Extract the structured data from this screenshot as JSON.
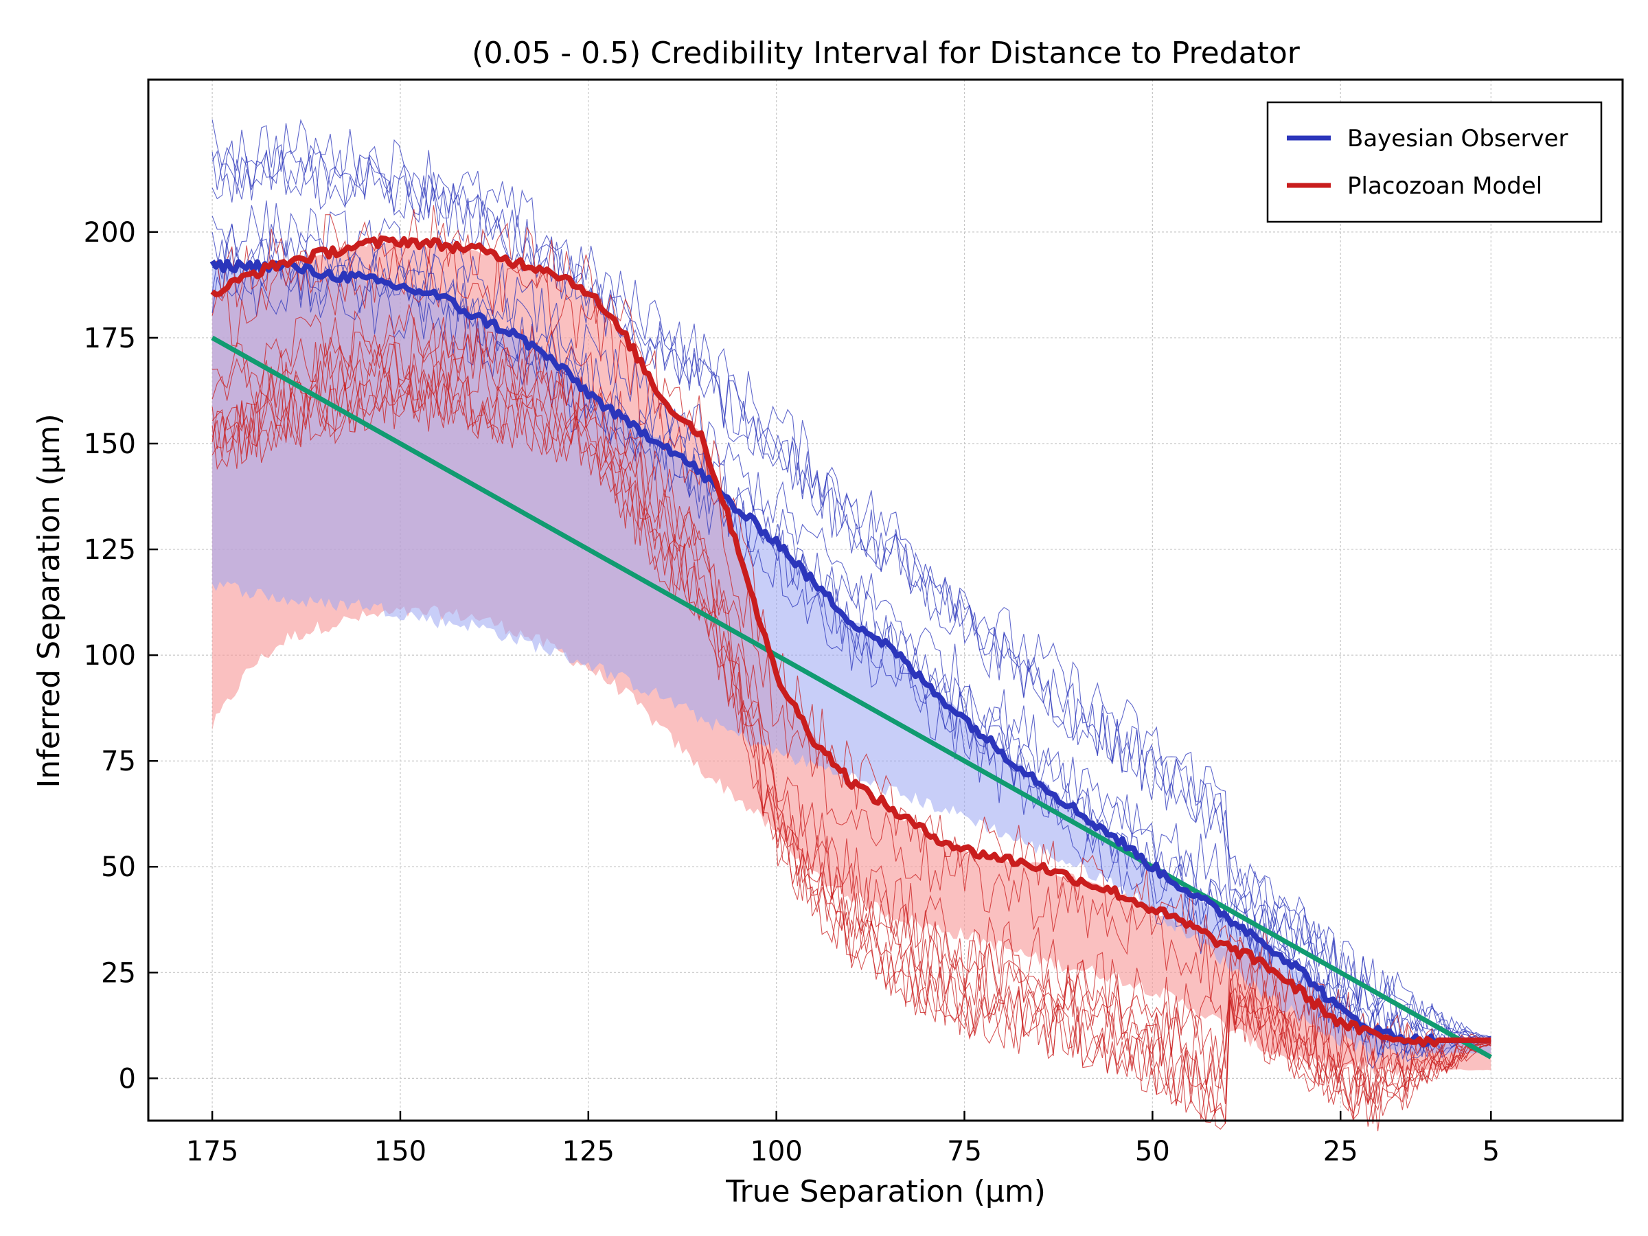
{
  "chart_data": {
    "type": "line",
    "title": "(0.05 - 0.5) Credibility Interval for Distance to Predator",
    "xlabel": "True Separation (µm)",
    "ylabel": "Inferred Separation (µm)",
    "xlim": [
      183.5,
      -12.5
    ],
    "ylim": [
      -10,
      236
    ],
    "x_reversed": true,
    "x_ticks": [
      175,
      150,
      125,
      100,
      75,
      50,
      25,
      5
    ],
    "x_tick_labels": [
      "175",
      "150",
      "125",
      "100",
      "75",
      "50",
      "25",
      "5"
    ],
    "y_ticks": [
      0,
      25,
      50,
      75,
      100,
      125,
      150,
      175,
      200
    ],
    "y_tick_labels": [
      "0",
      "25",
      "50",
      "75",
      "100",
      "125",
      "150",
      "175",
      "200"
    ],
    "grid": true,
    "legend_position": "top-right",
    "colors": {
      "bayesian": "#2b35bb",
      "placozoan": "#c91d1d",
      "bayesian_band": "#9ba6f2",
      "placozoan_band": "#f79999",
      "diagonal": "#109b70"
    },
    "series": [
      {
        "name": "Bayesian Observer",
        "x": [
          175,
          170,
          165,
          160,
          155,
          150,
          145,
          140,
          135,
          130,
          125,
          120,
          115,
          110,
          105,
          100,
          95,
          90,
          85,
          80,
          75,
          70,
          65,
          60,
          55,
          50,
          45,
          40,
          35,
          30,
          25,
          20,
          15,
          10,
          5
        ],
        "values": [
          192,
          192,
          192,
          190,
          189,
          187,
          185,
          180,
          176,
          170,
          162,
          155,
          150,
          143,
          134,
          127,
          117,
          108,
          102,
          93,
          85,
          77,
          70,
          63,
          57,
          50,
          44,
          38,
          32,
          25,
          16,
          11,
          9,
          9,
          9
        ]
      },
      {
        "name": "Placozoan Model",
        "x": [
          175,
          170,
          165,
          160,
          155,
          150,
          145,
          140,
          135,
          130,
          125,
          120,
          115,
          110,
          105,
          100,
          95,
          90,
          85,
          80,
          75,
          70,
          65,
          60,
          55,
          50,
          45,
          40,
          35,
          30,
          25,
          20,
          15,
          10,
          5
        ],
        "values": [
          185,
          190,
          193,
          195,
          197,
          198,
          197,
          196,
          193,
          191,
          186,
          175,
          160,
          152,
          125,
          95,
          80,
          70,
          64,
          58,
          54,
          52,
          50,
          47,
          44,
          40,
          36,
          31,
          27,
          20,
          13,
          10,
          9,
          9,
          9
        ]
      },
      {
        "name": "",
        "role": "diagonal",
        "x": [
          175,
          5
        ],
        "values": [
          175,
          5
        ]
      }
    ],
    "bands": [
      {
        "series": "Bayesian Observer",
        "x": [
          175,
          170,
          165,
          160,
          155,
          150,
          145,
          140,
          135,
          130,
          125,
          120,
          115,
          110,
          105,
          100,
          95,
          90,
          85,
          80,
          75,
          70,
          65,
          60,
          55,
          50,
          45,
          40,
          35,
          30,
          25,
          20,
          15,
          10,
          5
        ],
        "lower": [
          117,
          115,
          113,
          112,
          112,
          110,
          108,
          107,
          104,
          101,
          98,
          94,
          90,
          85,
          81,
          77,
          74,
          71,
          68,
          65,
          62,
          58,
          54,
          50,
          46,
          40,
          34,
          27,
          20,
          14,
          9,
          6,
          6,
          6,
          6
        ],
        "upper": [
          192,
          192,
          192,
          190,
          189,
          187,
          185,
          180,
          176,
          170,
          162,
          155,
          150,
          143,
          134,
          127,
          117,
          108,
          102,
          93,
          85,
          77,
          70,
          63,
          57,
          50,
          44,
          38,
          32,
          25,
          16,
          11,
          9,
          9,
          9
        ]
      },
      {
        "series": "Placozoan Model",
        "x": [
          175,
          170,
          165,
          160,
          155,
          150,
          145,
          140,
          135,
          130,
          125,
          120,
          115,
          110,
          105,
          100,
          95,
          90,
          85,
          80,
          75,
          70,
          65,
          60,
          55,
          50,
          45,
          40,
          35,
          30,
          25,
          20,
          15,
          10,
          5
        ],
        "lower": [
          83,
          97,
          104,
          107,
          109,
          110,
          110,
          109,
          106,
          102,
          97,
          91,
          82,
          73,
          66,
          58,
          48,
          43,
          39,
          36,
          34,
          31,
          28,
          26,
          24,
          21,
          17,
          12,
          7,
          4,
          3,
          2,
          2,
          2,
          2
        ],
        "upper": [
          185,
          190,
          193,
          195,
          197,
          198,
          197,
          196,
          193,
          191,
          186,
          175,
          160,
          152,
          125,
          95,
          80,
          70,
          64,
          58,
          54,
          52,
          50,
          47,
          44,
          40,
          36,
          31,
          27,
          20,
          13,
          10,
          9,
          9,
          9
        ]
      }
    ]
  }
}
